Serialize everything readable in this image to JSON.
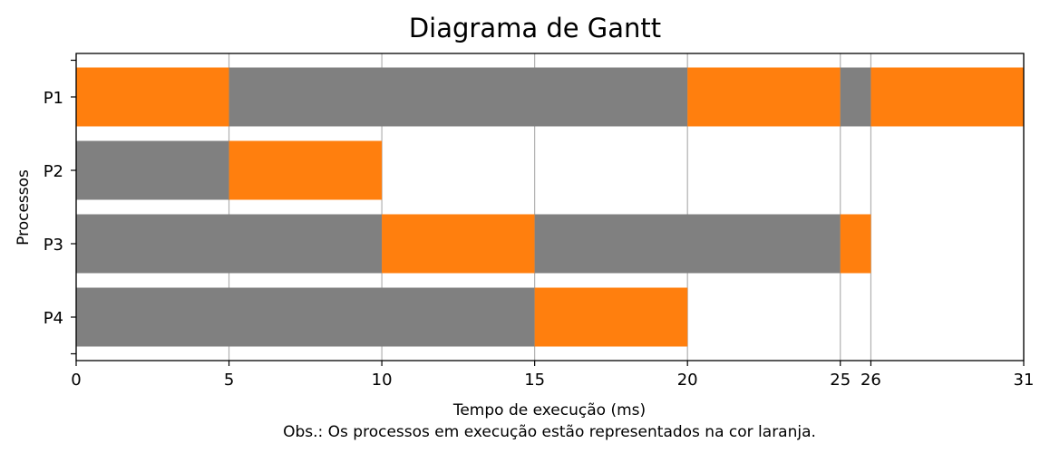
{
  "chart_data": {
    "type": "gantt",
    "title": "Diagrama de Gantt",
    "xlabel": "Tempo de execução (ms)",
    "ylabel": "Processos",
    "note": "Obs.: Os processos em execução estão representados na cor laranja.",
    "xlim": [
      0,
      31
    ],
    "xticks": [
      0,
      5,
      10,
      15,
      20,
      25,
      26,
      31
    ],
    "grid": "x",
    "colors": {
      "waiting": "#808080",
      "running": "#ff7f0e"
    },
    "processes": [
      {
        "name": "P1",
        "segments": [
          {
            "start": 0,
            "end": 5,
            "state": "running"
          },
          {
            "start": 5,
            "end": 20,
            "state": "waiting"
          },
          {
            "start": 20,
            "end": 25,
            "state": "running"
          },
          {
            "start": 25,
            "end": 26,
            "state": "waiting"
          },
          {
            "start": 26,
            "end": 31,
            "state": "running"
          }
        ]
      },
      {
        "name": "P2",
        "segments": [
          {
            "start": 0,
            "end": 5,
            "state": "waiting"
          },
          {
            "start": 5,
            "end": 10,
            "state": "running"
          }
        ]
      },
      {
        "name": "P3",
        "segments": [
          {
            "start": 0,
            "end": 10,
            "state": "waiting"
          },
          {
            "start": 10,
            "end": 15,
            "state": "running"
          },
          {
            "start": 15,
            "end": 25,
            "state": "waiting"
          },
          {
            "start": 25,
            "end": 26,
            "state": "running"
          }
        ]
      },
      {
        "name": "P4",
        "segments": [
          {
            "start": 0,
            "end": 15,
            "state": "waiting"
          },
          {
            "start": 15,
            "end": 20,
            "state": "running"
          }
        ]
      }
    ]
  }
}
